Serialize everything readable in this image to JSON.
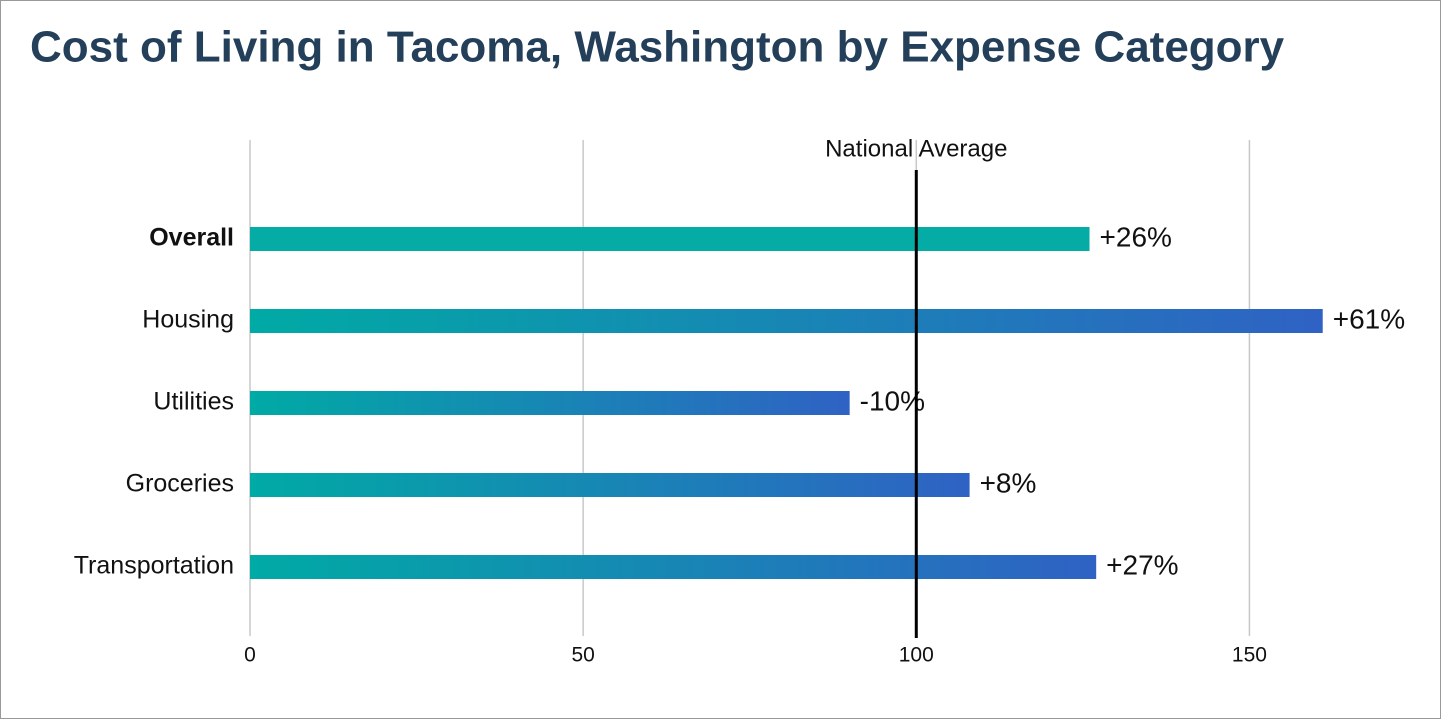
{
  "chart_data": {
    "type": "hbar",
    "title": "Cost of Living in Tacoma, Washington by Expense Category",
    "categories": [
      "Overall",
      "Housing",
      "Utilities",
      "Groceries",
      "Transportation"
    ],
    "values": [
      126,
      161,
      90,
      108,
      127
    ],
    "value_labels": [
      "+26%",
      "+61%",
      "-10%",
      "+8%",
      "+27%"
    ],
    "xlim": [
      0,
      175
    ],
    "xticks": [
      0,
      50,
      100,
      150
    ],
    "grid": true,
    "gradient": [
      "#00aaa5",
      "#2f62c4"
    ],
    "highlight": {
      "index": 0,
      "color": "#05aca6"
    },
    "reference": {
      "value": 100,
      "label": "National Average"
    }
  }
}
